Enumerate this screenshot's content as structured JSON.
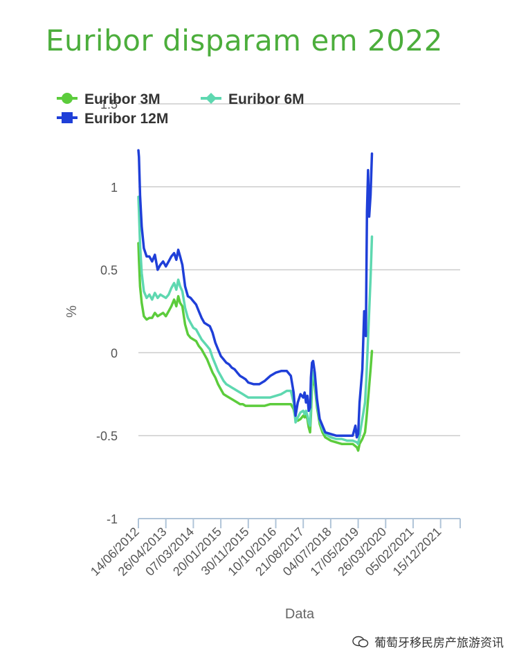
{
  "title": "Euribor disparam em 2022",
  "watermark": "葡萄牙移民房产旅游资讯",
  "chart_data": {
    "type": "line",
    "xlabel": "Data",
    "ylabel": "%",
    "ylim": [
      -1,
      1.5
    ],
    "y_ticks": [
      "-1",
      "-0.5",
      "0",
      "0.5",
      "1",
      "1.5"
    ],
    "x_ticks": [
      "14/06/2012",
      "26/04/2013",
      "07/03/2014",
      "20/01/2015",
      "30/11/2015",
      "10/10/2016",
      "21/08/2017",
      "04/07/2018",
      "17/05/2019",
      "26/03/2020",
      "05/02/2021",
      "15/12/2021"
    ],
    "legend_position": "top-left",
    "grid": true,
    "series": [
      {
        "name": "Euribor 3M",
        "color": "#5ccc3c",
        "marker": "circle",
        "points": [
          [
            0,
            0.66
          ],
          [
            0.02,
            0.56
          ],
          [
            0.06,
            0.4
          ],
          [
            0.12,
            0.3
          ],
          [
            0.2,
            0.22
          ],
          [
            0.3,
            0.2
          ],
          [
            0.4,
            0.21
          ],
          [
            0.5,
            0.21
          ],
          [
            0.6,
            0.24
          ],
          [
            0.7,
            0.22
          ],
          [
            0.8,
            0.23
          ],
          [
            0.9,
            0.24
          ],
          [
            1.0,
            0.22
          ],
          [
            1.1,
            0.25
          ],
          [
            1.2,
            0.28
          ],
          [
            1.3,
            0.32
          ],
          [
            1.38,
            0.28
          ],
          [
            1.45,
            0.34
          ],
          [
            1.52,
            0.3
          ],
          [
            1.6,
            0.28
          ],
          [
            1.7,
            0.17
          ],
          [
            1.8,
            0.11
          ],
          [
            1.9,
            0.09
          ],
          [
            2.0,
            0.08
          ],
          [
            2.1,
            0.07
          ],
          [
            2.2,
            0.04
          ],
          [
            2.3,
            0.02
          ],
          [
            2.4,
            -0.01
          ],
          [
            2.5,
            -0.04
          ],
          [
            2.6,
            -0.08
          ],
          [
            2.7,
            -0.12
          ],
          [
            2.8,
            -0.15
          ],
          [
            2.9,
            -0.19
          ],
          [
            3.0,
            -0.22
          ],
          [
            3.1,
            -0.25
          ],
          [
            3.2,
            -0.26
          ],
          [
            3.3,
            -0.27
          ],
          [
            3.4,
            -0.28
          ],
          [
            3.5,
            -0.29
          ],
          [
            3.6,
            -0.3
          ],
          [
            3.7,
            -0.31
          ],
          [
            3.8,
            -0.31
          ],
          [
            3.9,
            -0.32
          ],
          [
            4.0,
            -0.32
          ],
          [
            4.2,
            -0.32
          ],
          [
            4.4,
            -0.32
          ],
          [
            4.6,
            -0.32
          ],
          [
            4.8,
            -0.31
          ],
          [
            5.0,
            -0.31
          ],
          [
            5.2,
            -0.31
          ],
          [
            5.4,
            -0.31
          ],
          [
            5.55,
            -0.31
          ],
          [
            5.65,
            -0.34
          ],
          [
            5.72,
            -0.4
          ],
          [
            5.8,
            -0.41
          ],
          [
            5.9,
            -0.4
          ],
          [
            6.0,
            -0.38
          ],
          [
            6.05,
            -0.39
          ],
          [
            6.1,
            -0.38
          ],
          [
            6.15,
            -0.4
          ],
          [
            6.2,
            -0.45
          ],
          [
            6.25,
            -0.48
          ],
          [
            6.28,
            -0.38
          ],
          [
            6.32,
            -0.2
          ],
          [
            6.36,
            -0.16
          ],
          [
            6.42,
            -0.2
          ],
          [
            6.5,
            -0.33
          ],
          [
            6.6,
            -0.43
          ],
          [
            6.7,
            -0.48
          ],
          [
            6.8,
            -0.51
          ],
          [
            7.0,
            -0.53
          ],
          [
            7.2,
            -0.54
          ],
          [
            7.4,
            -0.55
          ],
          [
            7.6,
            -0.55
          ],
          [
            7.8,
            -0.55
          ],
          [
            7.95,
            -0.57
          ],
          [
            8.0,
            -0.59
          ],
          [
            8.05,
            -0.55
          ],
          [
            8.15,
            -0.52
          ],
          [
            8.25,
            -0.48
          ],
          [
            8.3,
            -0.4
          ],
          [
            8.35,
            -0.3
          ],
          [
            8.4,
            -0.2
          ],
          [
            8.45,
            -0.1
          ],
          [
            8.5,
            0.01
          ]
        ]
      },
      {
        "name": "Euribor 6M",
        "color": "#5ed8b0",
        "marker": "diamond",
        "points": [
          [
            0,
            0.94
          ],
          [
            0.02,
            0.85
          ],
          [
            0.06,
            0.65
          ],
          [
            0.12,
            0.48
          ],
          [
            0.2,
            0.37
          ],
          [
            0.3,
            0.33
          ],
          [
            0.4,
            0.35
          ],
          [
            0.5,
            0.32
          ],
          [
            0.6,
            0.36
          ],
          [
            0.7,
            0.33
          ],
          [
            0.8,
            0.35
          ],
          [
            0.9,
            0.34
          ],
          [
            1.0,
            0.33
          ],
          [
            1.1,
            0.35
          ],
          [
            1.2,
            0.39
          ],
          [
            1.3,
            0.42
          ],
          [
            1.38,
            0.38
          ],
          [
            1.45,
            0.44
          ],
          [
            1.52,
            0.4
          ],
          [
            1.6,
            0.37
          ],
          [
            1.7,
            0.27
          ],
          [
            1.8,
            0.21
          ],
          [
            1.9,
            0.18
          ],
          [
            2.0,
            0.15
          ],
          [
            2.1,
            0.14
          ],
          [
            2.2,
            0.11
          ],
          [
            2.3,
            0.08
          ],
          [
            2.4,
            0.06
          ],
          [
            2.5,
            0.04
          ],
          [
            2.6,
            0.02
          ],
          [
            2.7,
            -0.03
          ],
          [
            2.8,
            -0.07
          ],
          [
            2.9,
            -0.11
          ],
          [
            3.0,
            -0.14
          ],
          [
            3.1,
            -0.17
          ],
          [
            3.2,
            -0.19
          ],
          [
            3.3,
            -0.2
          ],
          [
            3.4,
            -0.21
          ],
          [
            3.5,
            -0.22
          ],
          [
            3.6,
            -0.23
          ],
          [
            3.7,
            -0.24
          ],
          [
            3.8,
            -0.25
          ],
          [
            3.9,
            -0.26
          ],
          [
            4.0,
            -0.27
          ],
          [
            4.2,
            -0.27
          ],
          [
            4.4,
            -0.27
          ],
          [
            4.6,
            -0.27
          ],
          [
            4.8,
            -0.27
          ],
          [
            5.0,
            -0.26
          ],
          [
            5.2,
            -0.25
          ],
          [
            5.4,
            -0.23
          ],
          [
            5.55,
            -0.23
          ],
          [
            5.65,
            -0.3
          ],
          [
            5.72,
            -0.42
          ],
          [
            5.8,
            -0.39
          ],
          [
            5.9,
            -0.36
          ],
          [
            6.0,
            -0.35
          ],
          [
            6.05,
            -0.37
          ],
          [
            6.1,
            -0.35
          ],
          [
            6.15,
            -0.38
          ],
          [
            6.2,
            -0.42
          ],
          [
            6.25,
            -0.44
          ],
          [
            6.28,
            -0.32
          ],
          [
            6.32,
            -0.14
          ],
          [
            6.36,
            -0.11
          ],
          [
            6.42,
            -0.17
          ],
          [
            6.5,
            -0.31
          ],
          [
            6.6,
            -0.41
          ],
          [
            6.7,
            -0.46
          ],
          [
            6.8,
            -0.49
          ],
          [
            7.0,
            -0.51
          ],
          [
            7.2,
            -0.52
          ],
          [
            7.4,
            -0.52
          ],
          [
            7.6,
            -0.53
          ],
          [
            7.8,
            -0.53
          ],
          [
            7.95,
            -0.54
          ],
          [
            8.0,
            -0.55
          ],
          [
            8.05,
            -0.5
          ],
          [
            8.15,
            -0.4
          ],
          [
            8.25,
            -0.3
          ],
          [
            8.3,
            -0.15
          ],
          [
            8.35,
            0.05
          ],
          [
            8.4,
            0.25
          ],
          [
            8.45,
            0.45
          ],
          [
            8.5,
            0.7
          ]
        ]
      },
      {
        "name": "Euribor 12M",
        "color": "#1f3fd8",
        "marker": "square",
        "points": [
          [
            0,
            1.22
          ],
          [
            0.02,
            1.18
          ],
          [
            0.06,
            0.95
          ],
          [
            0.12,
            0.76
          ],
          [
            0.2,
            0.63
          ],
          [
            0.3,
            0.58
          ],
          [
            0.4,
            0.58
          ],
          [
            0.5,
            0.55
          ],
          [
            0.6,
            0.59
          ],
          [
            0.7,
            0.5
          ],
          [
            0.8,
            0.53
          ],
          [
            0.9,
            0.55
          ],
          [
            1.0,
            0.52
          ],
          [
            1.1,
            0.55
          ],
          [
            1.2,
            0.58
          ],
          [
            1.3,
            0.6
          ],
          [
            1.38,
            0.56
          ],
          [
            1.45,
            0.62
          ],
          [
            1.52,
            0.58
          ],
          [
            1.6,
            0.53
          ],
          [
            1.7,
            0.4
          ],
          [
            1.8,
            0.34
          ],
          [
            1.9,
            0.33
          ],
          [
            2.0,
            0.31
          ],
          [
            2.1,
            0.29
          ],
          [
            2.2,
            0.25
          ],
          [
            2.3,
            0.21
          ],
          [
            2.4,
            0.18
          ],
          [
            2.5,
            0.17
          ],
          [
            2.6,
            0.16
          ],
          [
            2.7,
            0.12
          ],
          [
            2.8,
            0.06
          ],
          [
            2.9,
            0.02
          ],
          [
            3.0,
            -0.02
          ],
          [
            3.1,
            -0.04
          ],
          [
            3.2,
            -0.06
          ],
          [
            3.3,
            -0.07
          ],
          [
            3.4,
            -0.09
          ],
          [
            3.5,
            -0.1
          ],
          [
            3.6,
            -0.12
          ],
          [
            3.7,
            -0.14
          ],
          [
            3.8,
            -0.15
          ],
          [
            3.9,
            -0.16
          ],
          [
            4.0,
            -0.18
          ],
          [
            4.2,
            -0.19
          ],
          [
            4.4,
            -0.19
          ],
          [
            4.6,
            -0.17
          ],
          [
            4.8,
            -0.14
          ],
          [
            5.0,
            -0.12
          ],
          [
            5.2,
            -0.11
          ],
          [
            5.4,
            -0.11
          ],
          [
            5.55,
            -0.14
          ],
          [
            5.65,
            -0.24
          ],
          [
            5.72,
            -0.38
          ],
          [
            5.8,
            -0.3
          ],
          [
            5.9,
            -0.25
          ],
          [
            6.0,
            -0.27
          ],
          [
            6.05,
            -0.24
          ],
          [
            6.1,
            -0.3
          ],
          [
            6.15,
            -0.26
          ],
          [
            6.2,
            -0.35
          ],
          [
            6.25,
            -0.33
          ],
          [
            6.28,
            -0.15
          ],
          [
            6.32,
            -0.06
          ],
          [
            6.36,
            -0.05
          ],
          [
            6.42,
            -0.12
          ],
          [
            6.5,
            -0.28
          ],
          [
            6.6,
            -0.4
          ],
          [
            6.7,
            -0.44
          ],
          [
            6.8,
            -0.48
          ],
          [
            7.0,
            -0.49
          ],
          [
            7.2,
            -0.5
          ],
          [
            7.4,
            -0.5
          ],
          [
            7.6,
            -0.5
          ],
          [
            7.8,
            -0.5
          ],
          [
            7.9,
            -0.44
          ],
          [
            7.95,
            -0.51
          ],
          [
            8.0,
            -0.49
          ],
          [
            8.05,
            -0.3
          ],
          [
            8.15,
            -0.1
          ],
          [
            8.22,
            0.25
          ],
          [
            8.28,
            0.1
          ],
          [
            8.32,
            0.85
          ],
          [
            8.36,
            1.1
          ],
          [
            8.4,
            0.82
          ],
          [
            8.45,
            0.95
          ],
          [
            8.5,
            1.2
          ]
        ]
      }
    ]
  }
}
